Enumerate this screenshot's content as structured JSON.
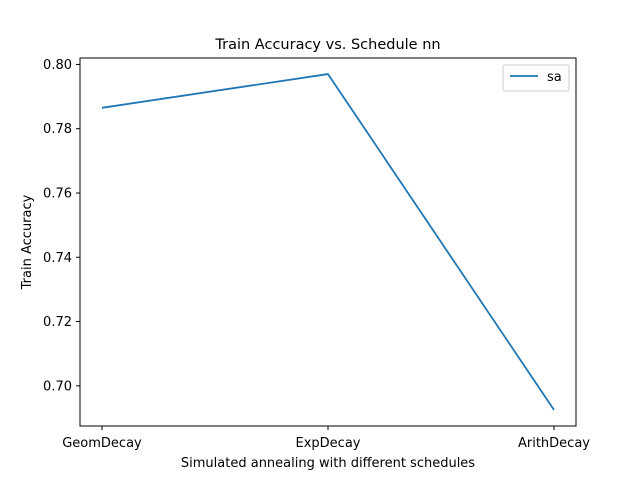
{
  "chart_data": {
    "type": "line",
    "title": "Train Accuracy vs. Schedule nn",
    "xlabel": "Simulated annealing with different schedules",
    "ylabel": "Train Accuracy",
    "categories": [
      "GeomDecay",
      "ExpDecay",
      "ArithDecay"
    ],
    "series": [
      {
        "name": "sa",
        "values": [
          0.7865,
          0.797,
          0.6925
        ],
        "color": "#1f77b4"
      }
    ],
    "ylim": [
      0.6875,
      0.802
    ],
    "yticks": [
      0.7,
      0.72,
      0.74,
      0.76,
      0.78,
      0.8
    ],
    "ytick_labels": [
      "0.70",
      "0.72",
      "0.74",
      "0.76",
      "0.78",
      "0.80"
    ],
    "grid": false,
    "legend_position": "top-right"
  }
}
